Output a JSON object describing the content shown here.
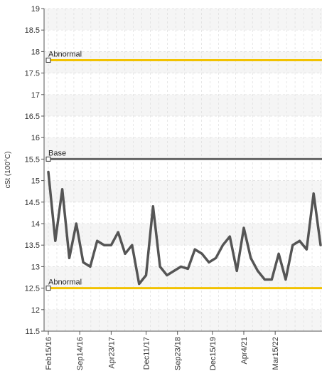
{
  "chart_data": {
    "type": "line",
    "title": "",
    "xlabel": "",
    "ylabel": "cSt (100°C)",
    "ylim": [
      11.5,
      19
    ],
    "yticks": [
      11.5,
      12,
      12.5,
      13,
      13.5,
      14,
      14.5,
      15,
      15.5,
      16,
      16.5,
      17,
      17.5,
      18,
      18.5,
      19
    ],
    "grid": true,
    "legend": "none",
    "x_tick_labels": [
      "Feb15/16",
      "Sep14/16",
      "Apr23/17",
      "Dec11/17",
      "Sep23/18",
      "Dec15/19",
      "Apr4/21",
      "Mar15/22"
    ],
    "series": [
      {
        "color": "#555555",
        "values": [
          15.2,
          13.6,
          14.8,
          13.2,
          14.0,
          13.1,
          13.0,
          13.6,
          13.5,
          13.5,
          13.8,
          13.3,
          13.5,
          12.6,
          12.8,
          14.4,
          13.0,
          12.8,
          12.9,
          13.0,
          12.95,
          13.4,
          13.3,
          13.1,
          13.2,
          13.5,
          13.7,
          12.9,
          13.9,
          13.2,
          12.9,
          12.7,
          12.7,
          13.3,
          12.7,
          13.5,
          13.6,
          13.4,
          14.7,
          13.5
        ]
      }
    ],
    "reference_lines": [
      {
        "label": "Abnormal",
        "value": 17.8,
        "color": "#f2c200"
      },
      {
        "label": "Base",
        "value": 15.5,
        "color": "#666666"
      },
      {
        "label": "Abnormal",
        "value": 12.5,
        "color": "#f2c200"
      }
    ]
  }
}
